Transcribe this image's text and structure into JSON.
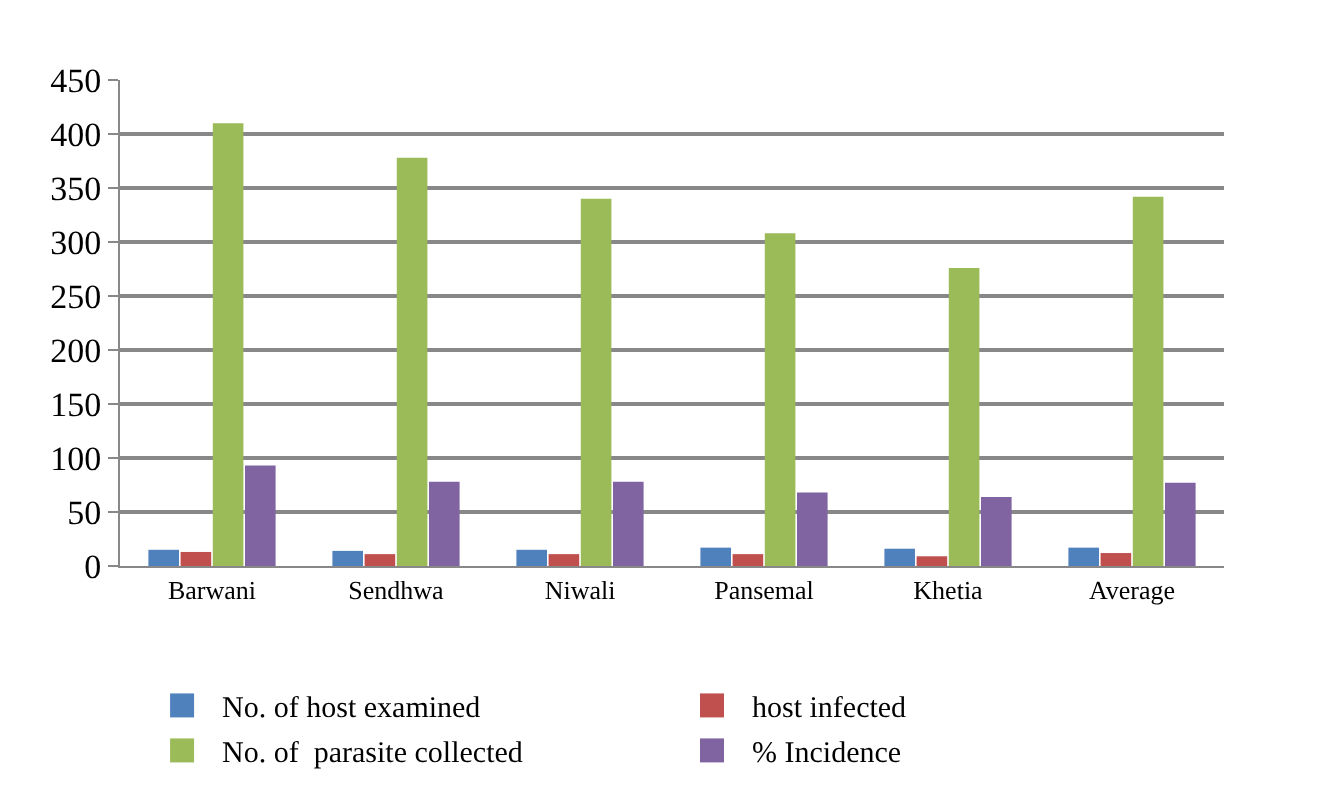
{
  "chart_data": {
    "type": "bar",
    "categories": [
      "Barwani",
      "Sendhwa",
      "Niwali",
      "Pansemal",
      "Khetia",
      "Average"
    ],
    "series": [
      {
        "name": "No. of host examined",
        "color": "#4f81bd",
        "values": [
          15,
          14,
          15,
          17,
          16,
          17
        ]
      },
      {
        "name": "host infected",
        "color": "#c0504d",
        "values": [
          13,
          11,
          11,
          11,
          9,
          12
        ]
      },
      {
        "name": "No. of  parasite collected",
        "color": "#9bbb59",
        "values": [
          410,
          378,
          340,
          308,
          276,
          342
        ]
      },
      {
        "name": "% Incidence",
        "color": "#8064a2",
        "values": [
          93,
          78,
          78,
          68,
          64,
          77
        ]
      }
    ],
    "ylim": [
      0,
      450
    ],
    "yticks": [
      0,
      50,
      100,
      150,
      200,
      250,
      300,
      350,
      400,
      450
    ],
    "grid": "y",
    "legend": "bottom"
  }
}
